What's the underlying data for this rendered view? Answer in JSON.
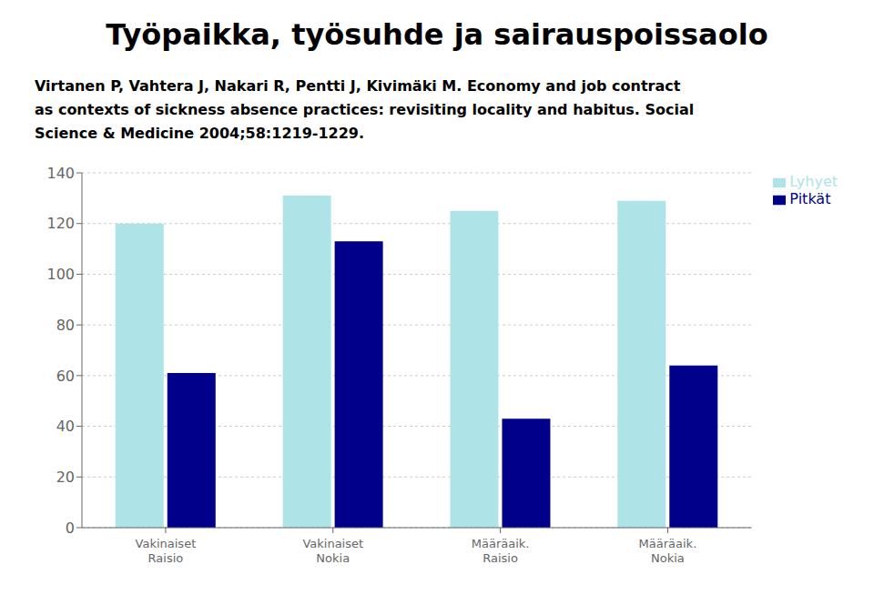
{
  "chart_data": {
    "type": "bar",
    "title": "Työpaikka, työsuhde ja sairauspoissaolo",
    "subtitle": [
      "Virtanen P, Vahtera J, Nakari R, Pentti J, Kivimäki M. Economy and job contract",
      "as contexts of sickness absence practices: revisiting locality and habitus. Social",
      "Science & Medicine 2004;58:1219-1229."
    ],
    "categories": [
      "Vakinaiset\nRaisio",
      "Vakinaiset\nNokia",
      "Määräaik.\nRaisio",
      "Määräaik.\nNokia"
    ],
    "series": [
      {
        "name": "Lyhyet",
        "color": "#aee4e8",
        "values": [
          120,
          131,
          125,
          129
        ]
      },
      {
        "name": "Pitkät",
        "color": "#00008B",
        "values": [
          61,
          113,
          43,
          64
        ]
      }
    ],
    "ylim": [
      0,
      140
    ],
    "yticks": [
      0,
      20,
      40,
      60,
      80,
      100,
      120,
      140
    ],
    "grid": true,
    "legend": "right"
  }
}
